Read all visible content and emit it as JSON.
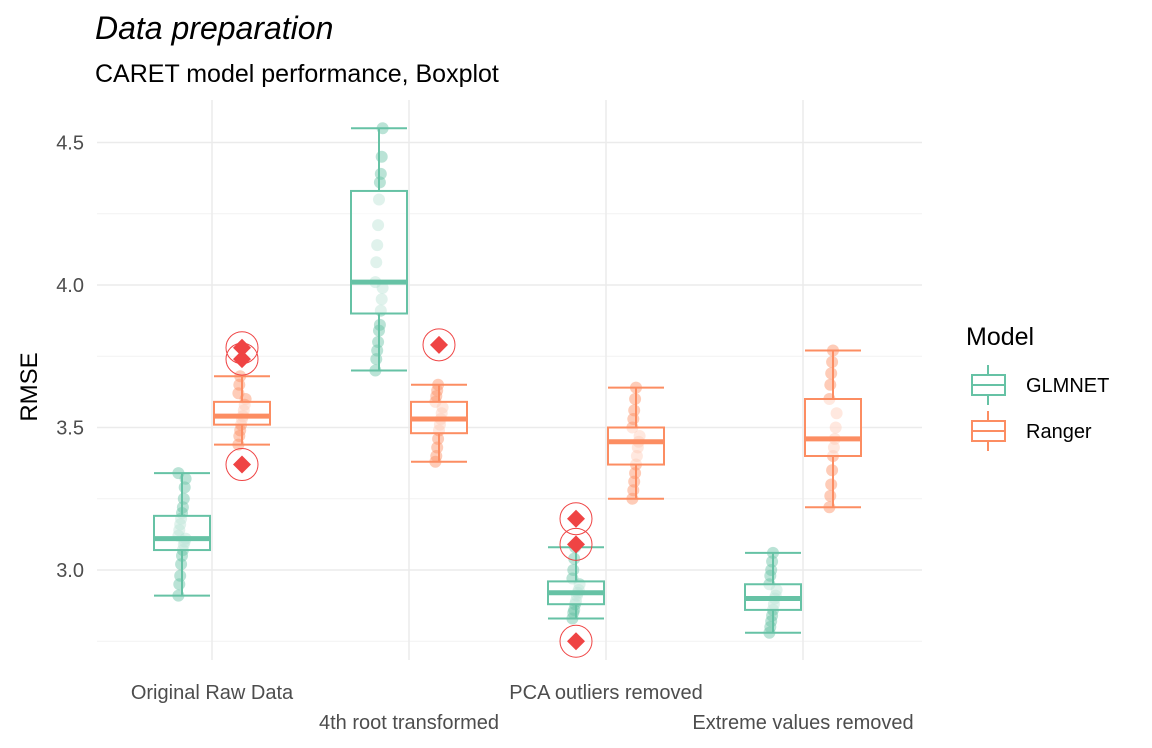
{
  "chart_data": {
    "type": "boxplot",
    "title": "Data preparation",
    "subtitle": "CARET model performance, Boxplot",
    "xlabel": "",
    "ylabel": "RMSE",
    "ylim": [
      2.7,
      4.6
    ],
    "yticks": [
      3.0,
      3.5,
      4.0,
      4.5
    ],
    "yticks_labels": [
      "3.0",
      "3.5",
      "4.0",
      "4.5"
    ],
    "grid": true,
    "legend": {
      "title": "Model",
      "position": "right",
      "entries": [
        "GLMNET",
        "Ranger"
      ]
    },
    "colors": {
      "GLMNET": "#66c2a5",
      "Ranger": "#fc8d62",
      "outlier": "#ef4444"
    },
    "categories": [
      "Original Raw Data",
      "4th root transformed",
      "PCA outliers removed",
      "Extreme values removed"
    ],
    "series": [
      {
        "name": "GLMNET",
        "boxes": [
          {
            "min": 2.91,
            "q1": 3.07,
            "median": 3.11,
            "q3": 3.19,
            "max": 3.34,
            "points": [
              2.91,
              2.95,
              2.98,
              3.02,
              3.05,
              3.07,
              3.09,
              3.1,
              3.11,
              3.12,
              3.14,
              3.16,
              3.18,
              3.2,
              3.22,
              3.25,
              3.29,
              3.32,
              3.34
            ],
            "outliers": []
          },
          {
            "min": 3.7,
            "q1": 3.9,
            "median": 4.01,
            "q3": 4.33,
            "max": 4.55,
            "points": [
              3.7,
              3.74,
              3.77,
              3.8,
              3.84,
              3.86,
              3.91,
              3.95,
              3.99,
              4.01,
              4.08,
              4.14,
              4.21,
              4.3,
              4.36,
              4.39,
              4.45,
              4.55
            ],
            "outliers": []
          },
          {
            "min": 2.83,
            "q1": 2.88,
            "median": 2.92,
            "q3": 2.96,
            "max": 3.08,
            "points": [
              2.83,
              2.85,
              2.86,
              2.88,
              2.89,
              2.91,
              2.92,
              2.93,
              2.95,
              2.97,
              3.0,
              3.04,
              3.08
            ],
            "outliers": [
              2.75,
              3.09,
              3.18
            ]
          },
          {
            "min": 2.78,
            "q1": 2.86,
            "median": 2.9,
            "q3": 2.95,
            "max": 3.06,
            "points": [
              2.78,
              2.8,
              2.82,
              2.84,
              2.86,
              2.88,
              2.9,
              2.91,
              2.93,
              2.95,
              2.98,
              3.0,
              3.03,
              3.06
            ],
            "outliers": []
          }
        ]
      },
      {
        "name": "Ranger",
        "boxes": [
          {
            "min": 3.44,
            "q1": 3.51,
            "median": 3.54,
            "q3": 3.59,
            "max": 3.68,
            "points": [
              3.44,
              3.47,
              3.49,
              3.51,
              3.53,
              3.54,
              3.56,
              3.58,
              3.6,
              3.62,
              3.65,
              3.68
            ],
            "outliers": [
              3.37,
              3.74,
              3.78
            ]
          },
          {
            "min": 3.38,
            "q1": 3.48,
            "median": 3.53,
            "q3": 3.59,
            "max": 3.65,
            "points": [
              3.38,
              3.4,
              3.43,
              3.46,
              3.49,
              3.51,
              3.53,
              3.55,
              3.57,
              3.59,
              3.61,
              3.63,
              3.65
            ],
            "outliers": [
              3.79
            ]
          },
          {
            "min": 3.25,
            "q1": 3.37,
            "median": 3.45,
            "q3": 3.5,
            "max": 3.64,
            "points": [
              3.25,
              3.28,
              3.31,
              3.34,
              3.37,
              3.4,
              3.43,
              3.45,
              3.47,
              3.5,
              3.53,
              3.56,
              3.6,
              3.64
            ],
            "outliers": []
          },
          {
            "min": 3.22,
            "q1": 3.4,
            "median": 3.46,
            "q3": 3.6,
            "max": 3.77,
            "points": [
              3.22,
              3.26,
              3.3,
              3.35,
              3.4,
              3.43,
              3.46,
              3.5,
              3.55,
              3.6,
              3.65,
              3.69,
              3.73,
              3.77
            ],
            "outliers": []
          }
        ]
      }
    ]
  }
}
